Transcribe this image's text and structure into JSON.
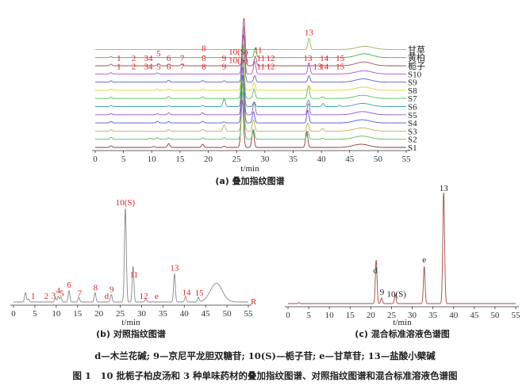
{
  "chart_data": [
    {
      "id": "a",
      "type": "line",
      "caption": "(a) 叠加指纹图谱",
      "xlabel": "t/min",
      "xlim": [
        0,
        55
      ],
      "xticks": [
        0,
        5,
        10,
        15,
        20,
        25,
        30,
        35,
        40,
        45,
        50,
        55
      ],
      "series": [
        {
          "name": "S1",
          "color": "#8b3a3a",
          "peaks": [
            [
              2.8,
              0.05
            ],
            [
              10.3,
              0.03
            ],
            [
              13,
              0.12
            ],
            [
              19,
              0.1
            ],
            [
              22.8,
              0.04
            ],
            [
              26,
              1.5
            ],
            [
              27.9,
              0.55
            ],
            [
              37.4,
              0.5
            ],
            [
              47,
              0.1
            ]
          ]
        },
        {
          "name": "S2",
          "color": "#5cb85c",
          "peaks": [
            [
              2.8,
              0.06
            ],
            [
              9.7,
              0.03
            ],
            [
              11,
              0.05
            ],
            [
              13,
              0.04
            ],
            [
              19,
              0.04
            ],
            [
              22.8,
              0.05
            ],
            [
              26.1,
              1.5
            ],
            [
              28,
              0.3
            ],
            [
              37.6,
              0.25
            ],
            [
              40.2,
              0.03
            ],
            [
              47.2,
              0.1
            ]
          ]
        },
        {
          "name": "S3",
          "color": "#b5b55a",
          "peaks": [
            [
              2.8,
              0.04
            ],
            [
              13,
              0.04
            ],
            [
              19,
              0.05
            ],
            [
              22.8,
              0.2
            ],
            [
              26.1,
              1.5
            ],
            [
              28,
              0.35
            ],
            [
              37.6,
              0.25
            ],
            [
              40.2,
              0.08
            ],
            [
              47.2,
              0.1
            ]
          ]
        },
        {
          "name": "S4",
          "color": "#5555cc",
          "peaks": [
            [
              2.8,
              0.05
            ],
            [
              11,
              0.05
            ],
            [
              13,
              0.04
            ],
            [
              19,
              0.05
            ],
            [
              22.8,
              0.03
            ],
            [
              26.1,
              1.5
            ],
            [
              28,
              0.35
            ],
            [
              37.6,
              0.4
            ],
            [
              47.2,
              0.1
            ]
          ]
        },
        {
          "name": "S5",
          "color": "#a050c0",
          "peaks": [
            [
              2.8,
              0.04
            ],
            [
              11,
              0.03
            ],
            [
              13,
              0.06
            ],
            [
              19,
              0.07
            ],
            [
              26.1,
              1.5
            ],
            [
              28.1,
              0.4
            ],
            [
              37.7,
              0.35
            ],
            [
              47.3,
              0.1
            ]
          ]
        },
        {
          "name": "S6",
          "color": "#40a0a0",
          "peaks": [
            [
              2.8,
              0.04
            ],
            [
              13,
              0.03
            ],
            [
              19,
              0.04
            ],
            [
              22.8,
              0.25
            ],
            [
              26.1,
              1.5
            ],
            [
              28.1,
              0.15
            ],
            [
              37.7,
              0.2
            ],
            [
              40.3,
              0.1
            ],
            [
              43.2,
              0.04
            ],
            [
              47.3,
              0.1
            ]
          ]
        },
        {
          "name": "S7",
          "color": "#55c055",
          "peaks": [
            [
              2.8,
              0.04
            ],
            [
              13,
              0.06
            ],
            [
              19,
              0.05
            ],
            [
              26.1,
              1.5
            ],
            [
              28.1,
              0.3
            ],
            [
              37.7,
              0.4
            ],
            [
              40.2,
              0.05
            ],
            [
              47.3,
              0.1
            ]
          ]
        },
        {
          "name": "S8",
          "color": "#d8d830",
          "peaks": [
            [
              2.8,
              0.04
            ],
            [
              11,
              0.04
            ],
            [
              13,
              0.04
            ],
            [
              19,
              0.04
            ],
            [
              26.1,
              1.5
            ],
            [
              28.1,
              0.25
            ],
            [
              37.8,
              0.15
            ],
            [
              47.4,
              0.1
            ]
          ]
        },
        {
          "name": "S9",
          "color": "#6060d0",
          "peaks": [
            [
              2.8,
              0.04
            ],
            [
              13,
              0.06
            ],
            [
              19,
              0.05
            ],
            [
              22.8,
              0.04
            ],
            [
              26.2,
              1.5
            ],
            [
              28.2,
              0.2
            ],
            [
              37.8,
              0.2
            ],
            [
              47.4,
              0.1
            ]
          ]
        },
        {
          "name": "S10",
          "color": "#b050d0",
          "peaks": [
            [
              2.8,
              0.04
            ],
            [
              11,
              0.03
            ],
            [
              26.2,
              1.5
            ],
            [
              28.2,
              0.4
            ],
            [
              37.8,
              0.35
            ],
            [
              47.5,
              0.1
            ]
          ]
        },
        {
          "name": "栀子",
          "color": "#a05060",
          "peaks": [
            [
              2.8,
              0.05
            ],
            [
              11.2,
              0.06
            ],
            [
              13,
              0.05
            ],
            [
              15.3,
              0.04
            ],
            [
              26.3,
              1.5
            ],
            [
              28.3,
              0.3
            ],
            [
              47.5,
              0.12
            ]
          ]
        },
        {
          "name": "黄柏",
          "color": "#40b040",
          "peaks": [
            [
              2.8,
              0.03
            ],
            [
              19.2,
              0.06
            ],
            [
              26.3,
              0.4
            ],
            [
              28.3,
              0.3
            ],
            [
              47.6,
              0.12
            ]
          ]
        },
        {
          "name": "甘草",
          "color": "#a0b060",
          "peaks": [
            [
              37.8,
              0.35
            ],
            [
              47.7,
              0.1
            ]
          ]
        }
      ],
      "peak_labels_zhizi": [
        [
          "1",
          4.2
        ],
        [
          "2",
          6.8
        ],
        [
          "34",
          9.4
        ],
        [
          "5",
          11.2
        ],
        [
          "6",
          13
        ],
        [
          "7",
          15.4
        ],
        [
          "8",
          19.2
        ],
        [
          "9",
          22.8
        ],
        [
          "10(S)",
          25.3
        ],
        [
          "11",
          29.3
        ],
        [
          "12",
          31
        ],
        [
          "13",
          37.6
        ],
        [
          "14",
          40.5
        ],
        [
          "15",
          43.3
        ]
      ],
      "peak_labels_s10": [
        [
          "1",
          4.2
        ],
        [
          "2",
          6.8
        ],
        [
          "34",
          9.4
        ],
        [
          "5",
          11.2
        ],
        [
          "6",
          13
        ],
        [
          "7",
          15.4
        ],
        [
          "8",
          19.2
        ],
        [
          "9",
          22.8
        ],
        [
          "10(S)",
          25.3
        ],
        [
          "11",
          29.3
        ],
        [
          "12",
          31
        ],
        [
          "13",
          39.3
        ],
        [
          "14",
          40.5
        ],
        [
          "15",
          43.3
        ]
      ]
    },
    {
      "id": "b",
      "type": "line",
      "caption": "(b) 对照指纹图谱",
      "xlabel": "t/min",
      "xlim": [
        0,
        55
      ],
      "xticks": [
        0,
        5,
        10,
        15,
        20,
        25,
        30,
        35,
        40,
        45,
        50,
        55
      ],
      "trace_label": "R",
      "color": "#888888",
      "peaks": [
        [
          2.8,
          0.1
        ],
        [
          3.5,
          0.03
        ],
        [
          9.8,
          0.04
        ],
        [
          10.5,
          0.06
        ],
        [
          11.1,
          0.05
        ],
        [
          13,
          0.12
        ],
        [
          15.3,
          0.05
        ],
        [
          19.1,
          0.1
        ],
        [
          22.9,
          0.08
        ],
        [
          26.2,
          1.0
        ],
        [
          28,
          0.38
        ],
        [
          31,
          0.03
        ],
        [
          37.7,
          0.3
        ],
        [
          40.3,
          0.06
        ],
        [
          43.3,
          0.05
        ],
        [
          47.5,
          0.2
        ]
      ],
      "peak_labels": [
        [
          "1",
          4.6
        ],
        [
          "2",
          7.7
        ],
        [
          "3",
          9.4
        ],
        [
          "4",
          10.5
        ],
        [
          "5",
          11.3
        ],
        [
          "6",
          13
        ],
        [
          "7",
          15.5
        ],
        [
          "8",
          19.2
        ],
        [
          "d",
          21.8
        ],
        [
          "9",
          23
        ],
        [
          "10(S)",
          26.2
        ],
        [
          "11",
          28.2
        ],
        [
          "12",
          30.5
        ],
        [
          "e",
          33.5
        ],
        [
          "13",
          37.7
        ],
        [
          "14",
          40.5
        ],
        [
          "15",
          43.5
        ]
      ]
    },
    {
      "id": "c",
      "type": "line",
      "caption": "(c) 混合标准溶液色谱图",
      "xlabel": "t/min",
      "xlim": [
        0,
        55
      ],
      "xticks": [
        0,
        5,
        10,
        15,
        20,
        25,
        30,
        35,
        40,
        45,
        50,
        55
      ],
      "color": "#a04848",
      "peaks": [
        [
          2.6,
          0.01
        ],
        [
          21.3,
          0.55
        ],
        [
          22.6,
          0.07
        ],
        [
          25.9,
          0.11
        ],
        [
          32.9,
          0.47
        ],
        [
          37.6,
          1.4
        ]
      ],
      "peak_labels": [
        [
          "d",
          21.1
        ],
        [
          "9",
          22.7
        ],
        [
          "10(S)",
          26.2
        ],
        [
          "e",
          32.9
        ],
        [
          "13",
          37.6
        ]
      ]
    }
  ],
  "legend_note": "d—木兰花碱; 9—京尼平龙胆双糖苷; 10(S)—栀子苷; e—甘草苷; 13—盐酸小檗碱",
  "figure_caption": "图 1　10 批栀子柏皮汤和 3 种单味药材的叠加指纹图谱、对照指纹图谱和混合标准溶液色谱图"
}
